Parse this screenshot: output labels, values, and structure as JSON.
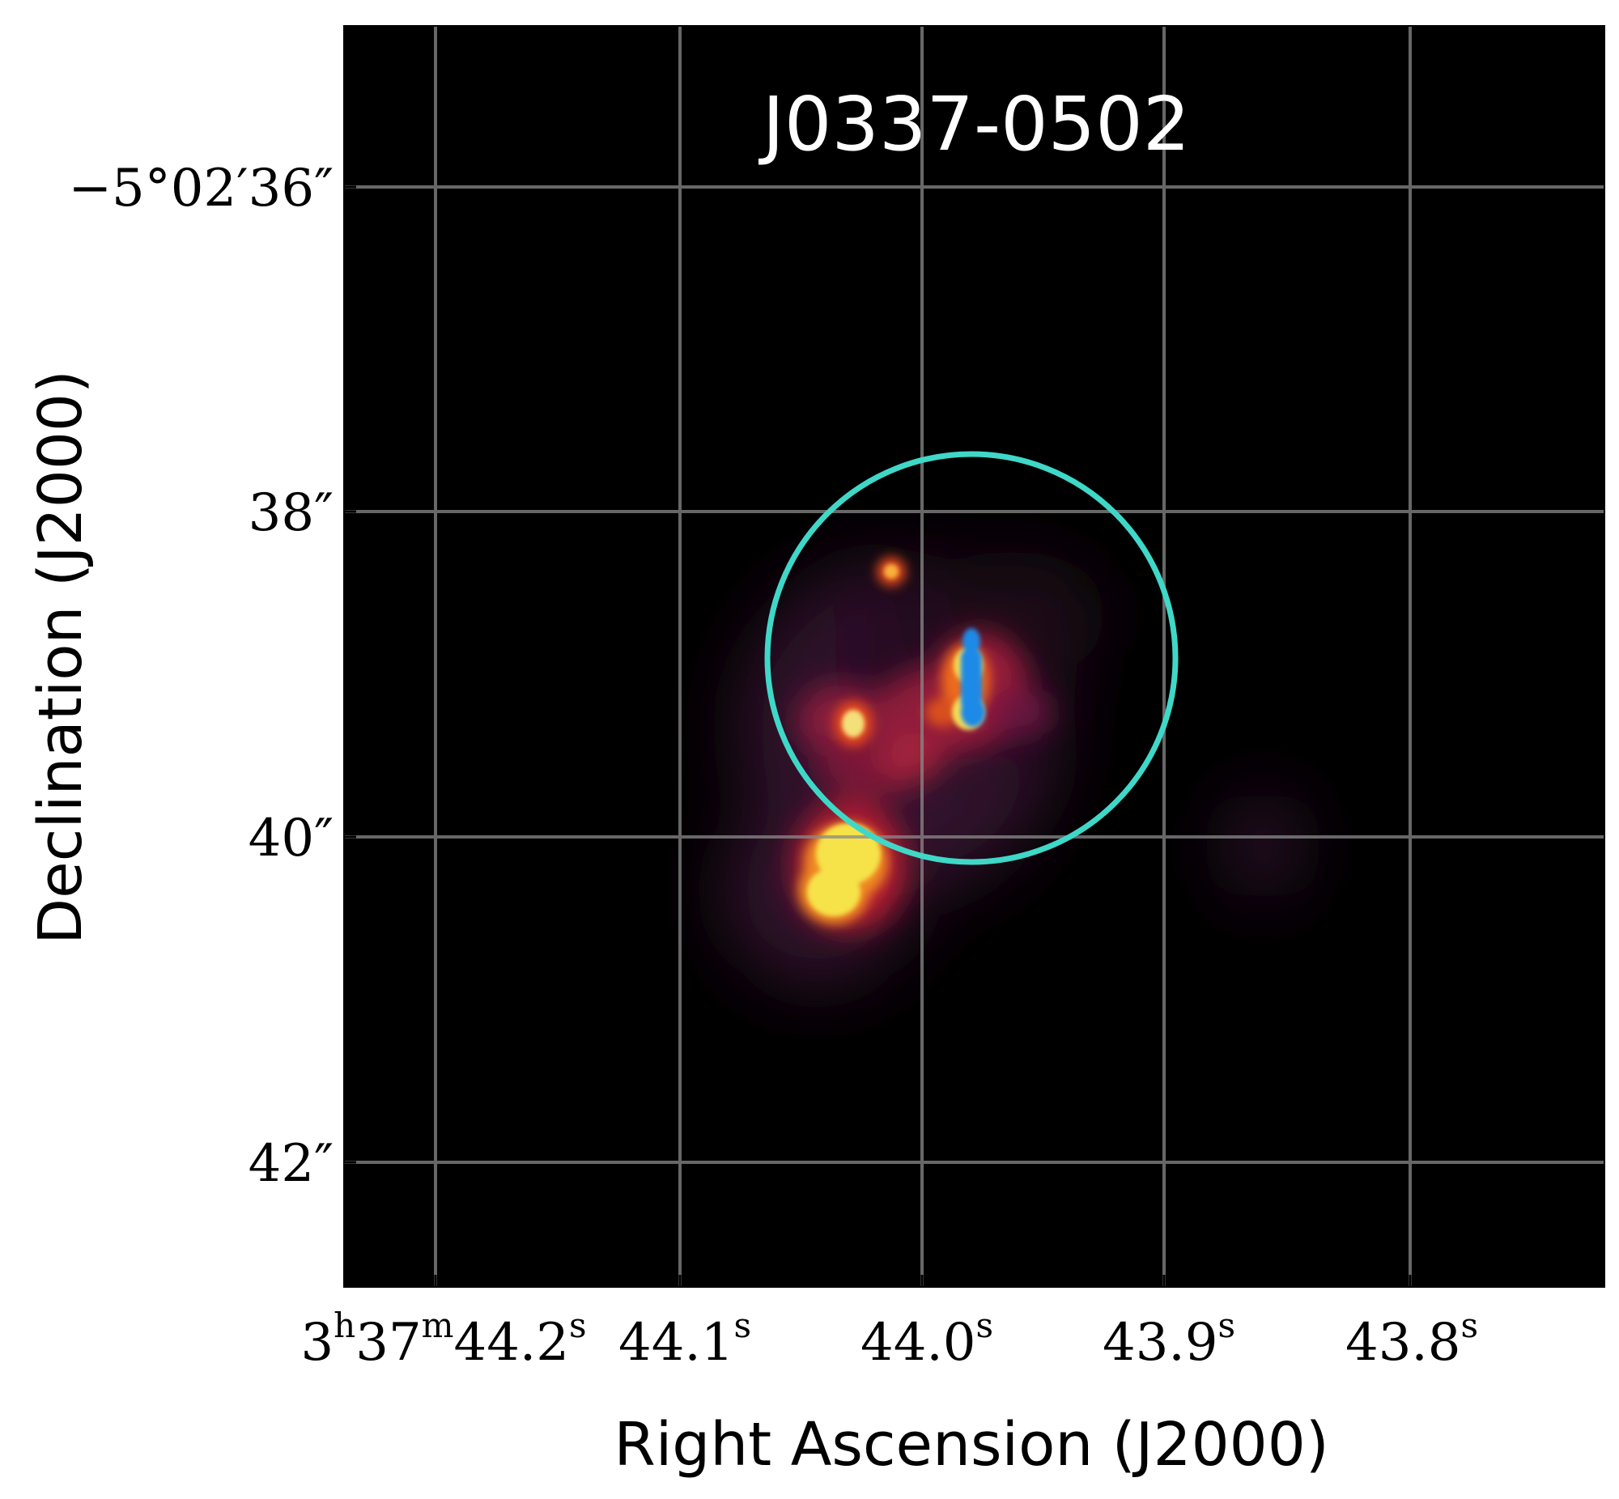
{
  "figure": {
    "title": "J0337-0502",
    "xlabel": "Right Ascension (J2000)",
    "ylabel": "Declination (J2000)",
    "x_ticks": [
      {
        "main": "3",
        "sup1": "h",
        "mid": "37",
        "sup2": "m",
        "tail": "44.2",
        "sup3": "s"
      },
      {
        "main": "44.1",
        "sup": "s"
      },
      {
        "main": "44.0",
        "sup": "s"
      },
      {
        "main": "43.9",
        "sup": "s"
      },
      {
        "main": "43.8",
        "sup": "s"
      }
    ],
    "y_ticks": [
      "−5°02′36″",
      "38″",
      "40″",
      "42″"
    ],
    "colors": {
      "background": "#000000",
      "grid": "#8a8a8a",
      "aperture_circle": "#3fd8c8",
      "hot_core": "#f6e24a",
      "mid_emission": "#e0283c",
      "faint_emission": "#5a1e4e",
      "blue_source": "#1e8ae6"
    }
  }
}
